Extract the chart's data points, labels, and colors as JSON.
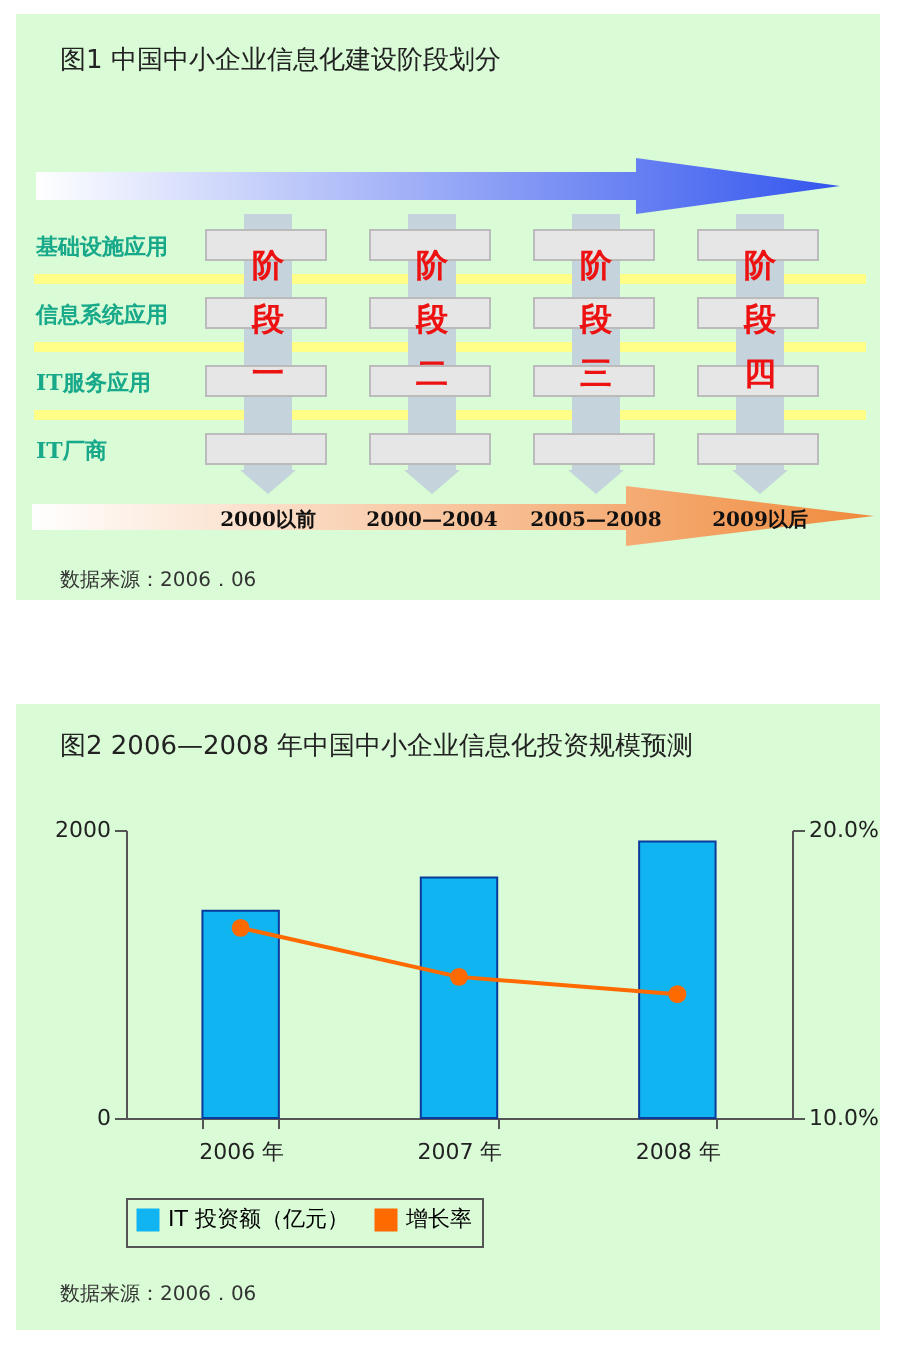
{
  "chart_data": [
    {
      "type": "other",
      "title": "图1 中国中小企业信息化建设阶段划分",
      "annotations": [
        "基础设施应用",
        "信息系统应用",
        "IT服务应用",
        "IT厂商",
        "阶段一",
        "阶段二",
        "阶段三",
        "阶段四",
        "2000以前",
        "2000—2004",
        "2005—2008",
        "2009以后",
        "数据来源：2006．06"
      ]
    },
    {
      "type": "bar",
      "title": "图2 2006—2008 年中国中小企业信息化投资规模预测",
      "categories": [
        "2006 年",
        "2007 年",
        "2008 年"
      ],
      "series": [
        {
          "name": "IT 投资额（亿元）",
          "type": "bar",
          "color": "#10b4f0",
          "values": [
            1440,
            1670,
            1920
          ]
        },
        {
          "name": "增长率",
          "type": "line",
          "axis": "y2",
          "color": "#ff6a00",
          "values": [
            16.6,
            14.9,
            14.3
          ]
        }
      ],
      "ylim": [
        0,
        2000
      ],
      "yticks": [
        0,
        2000
      ],
      "y2lim": [
        10,
        20
      ],
      "y2ticks": [
        {
          "value": 10,
          "label": "10.0%"
        },
        {
          "value": 20,
          "label": "20.0%"
        }
      ],
      "marker": "circle",
      "legend": "bottom",
      "annotations": [
        "数据来源：2006．06"
      ]
    }
  ]
}
